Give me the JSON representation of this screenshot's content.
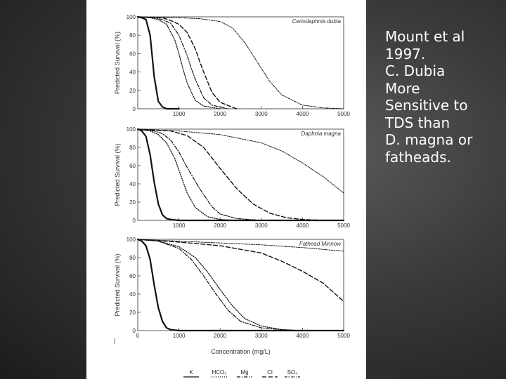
{
  "caption": {
    "lines": [
      "Mount et al",
      "1997.",
      "C. Dubia",
      "More",
      "Sensitive to",
      "TDS  than",
      "D. magna or",
      "fatheads."
    ]
  },
  "chart_data": [
    {
      "type": "line",
      "title": "Ceriodaphnia dubia",
      "ylabel": "Predicted Survival (%)",
      "xlabel": "",
      "xlim": [
        0,
        5000
      ],
      "ylim": [
        0,
        100
      ],
      "x_ticks": [
        "1000",
        "2000",
        "3000",
        "4000",
        "5000"
      ],
      "y_ticks": [
        "0",
        "20",
        "40",
        "60",
        "80",
        "100"
      ],
      "series": [
        {
          "style": "solid",
          "x": [
            0,
            100,
            200,
            300,
            400,
            500,
            600,
            700,
            1000
          ],
          "y": [
            100,
            99,
            97,
            80,
            35,
            8,
            2,
            0,
            0
          ]
        },
        {
          "style": "dotted",
          "x": [
            0,
            300,
            500,
            700,
            900,
            1000,
            1100,
            1200,
            1400,
            1600,
            2000
          ],
          "y": [
            100,
            99,
            97,
            92,
            75,
            60,
            43,
            28,
            9,
            3,
            0
          ]
        },
        {
          "style": "dash-dot",
          "x": [
            0,
            400,
            600,
            800,
            1000,
            1200,
            1300,
            1400,
            1600,
            1800,
            2200
          ],
          "y": [
            100,
            99,
            97,
            93,
            80,
            58,
            44,
            32,
            12,
            4,
            0
          ]
        },
        {
          "style": "dashed",
          "x": [
            0,
            600,
            800,
            1000,
            1200,
            1400,
            1500,
            1600,
            1800,
            2000,
            2400
          ],
          "y": [
            100,
            99,
            96,
            92,
            83,
            65,
            52,
            40,
            18,
            7,
            0
          ]
        },
        {
          "style": "dash-dot-dot",
          "x": [
            0,
            1000,
            1500,
            2000,
            2300,
            2600,
            2800,
            3000,
            3200,
            3500,
            4000,
            4500,
            5000
          ],
          "y": [
            100,
            99,
            98,
            95,
            88,
            72,
            58,
            44,
            30,
            15,
            4,
            1,
            0
          ]
        }
      ]
    },
    {
      "type": "line",
      "title": "Daphnia magna",
      "ylabel": "Predicted Survival (%)",
      "xlabel": "",
      "xlim": [
        0,
        5000
      ],
      "ylim": [
        0,
        100
      ],
      "x_ticks": [
        "1000",
        "2000",
        "3000",
        "4000",
        "5000"
      ],
      "y_ticks": [
        "0",
        "20",
        "40",
        "60",
        "80",
        "100"
      ],
      "series": [
        {
          "style": "solid",
          "x": [
            0,
            100,
            200,
            300,
            400,
            500,
            600,
            700,
            800,
            1000,
            5000
          ],
          "y": [
            100,
            98,
            92,
            72,
            42,
            18,
            6,
            2,
            1,
            0,
            0
          ]
        },
        {
          "style": "dotted",
          "x": [
            0,
            300,
            500,
            700,
            900,
            1000,
            1200,
            1400,
            1700,
            2000,
            2400
          ],
          "y": [
            100,
            98,
            94,
            85,
            68,
            55,
            30,
            14,
            4,
            1,
            0
          ]
        },
        {
          "style": "dash-dot",
          "x": [
            0,
            400,
            600,
            800,
            1000,
            1200,
            1500,
            1800,
            2000,
            2400,
            3000
          ],
          "y": [
            100,
            98,
            95,
            88,
            75,
            58,
            35,
            15,
            7,
            2,
            0
          ]
        },
        {
          "style": "dashed",
          "x": [
            0,
            800,
            1200,
            1600,
            2000,
            2400,
            2800,
            3200,
            3600,
            4000,
            4500
          ],
          "y": [
            100,
            98,
            93,
            80,
            57,
            35,
            18,
            8,
            3,
            1,
            0
          ]
        },
        {
          "style": "dash-dot-dot",
          "x": [
            0,
            1000,
            2000,
            3000,
            3500,
            4000,
            4500,
            5000
          ],
          "y": [
            100,
            98,
            94,
            85,
            76,
            63,
            48,
            30
          ]
        }
      ]
    },
    {
      "type": "line",
      "title": "Fathead Minnow",
      "ylabel": "Predicted Survival (%)",
      "xlabel": "Concentration (mg/L)",
      "xlim": [
        0,
        5000
      ],
      "ylim": [
        0,
        100
      ],
      "x_ticks": [
        "0",
        "1000",
        "2000",
        "3000",
        "4000",
        "5000"
      ],
      "y_ticks": [
        "0",
        "20",
        "40",
        "60",
        "80",
        "100"
      ],
      "series": [
        {
          "style": "solid",
          "x": [
            0,
            100,
            200,
            300,
            400,
            500,
            600,
            700,
            800,
            1000,
            5000
          ],
          "y": [
            100,
            98,
            93,
            78,
            50,
            25,
            10,
            3,
            1,
            0,
            0
          ]
        },
        {
          "style": "dotted",
          "x": [
            0,
            500,
            1000,
            1400,
            1700,
            2000,
            2300,
            2600,
            3000,
            3500,
            4000
          ],
          "y": [
            100,
            98,
            92,
            80,
            64,
            45,
            27,
            13,
            5,
            1,
            0
          ]
        },
        {
          "style": "dash-dot",
          "x": [
            0,
            500,
            1000,
            1300,
            1600,
            1900,
            2200,
            2500,
            3000,
            3500,
            4000
          ],
          "y": [
            100,
            98,
            90,
            78,
            60,
            40,
            22,
            10,
            3,
            1,
            0
          ]
        },
        {
          "style": "dashed",
          "x": [
            0,
            1000,
            2000,
            3000,
            3500,
            4000,
            4500,
            5000
          ],
          "y": [
            100,
            97,
            93,
            85,
            76,
            65,
            52,
            32
          ]
        },
        {
          "style": "dash-dot-dot",
          "x": [
            0,
            1000,
            2000,
            3000,
            4000,
            5000
          ],
          "y": [
            100,
            98,
            96,
            94,
            91,
            87
          ]
        }
      ]
    }
  ],
  "legend": {
    "items": [
      {
        "label": "K",
        "style": "solid"
      },
      {
        "label": "HCO₃",
        "style": "dotted"
      },
      {
        "label": "Mg",
        "style": "dash-dot"
      },
      {
        "label": "Cl",
        "style": "dashed"
      },
      {
        "label": "SO₄",
        "style": "dash-dot-dot"
      }
    ]
  }
}
